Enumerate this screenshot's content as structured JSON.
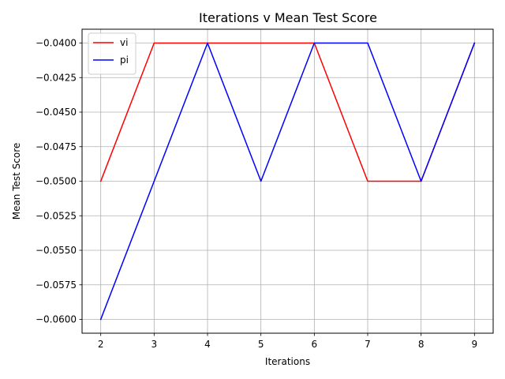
{
  "chart_data": {
    "type": "line",
    "title": "Iterations v Mean Test Score",
    "xlabel": "Iterations",
    "ylabel": "Mean Test Score",
    "x": [
      2,
      3,
      4,
      5,
      6,
      7,
      8,
      9
    ],
    "xticks": [
      "2",
      "3",
      "4",
      "5",
      "6",
      "7",
      "8",
      "9"
    ],
    "yticks": [
      "−0.0400",
      "−0.0425",
      "−0.0450",
      "−0.0475",
      "−0.0500",
      "−0.0525",
      "−0.0550",
      "−0.0575",
      "−0.0600"
    ],
    "ytick_values": [
      -0.04,
      -0.0425,
      -0.045,
      -0.0475,
      -0.05,
      -0.0525,
      -0.055,
      -0.0575,
      -0.06
    ],
    "xlim": [
      1.65,
      9.35
    ],
    "ylim": [
      -0.061,
      -0.039
    ],
    "grid": true,
    "legend_position": "top-left",
    "series": [
      {
        "name": "vi",
        "color": "#ff0000",
        "values": [
          -0.05,
          -0.04,
          -0.04,
          -0.04,
          -0.04,
          -0.05,
          -0.05,
          -0.04
        ]
      },
      {
        "name": "pi",
        "color": "#0000ff",
        "values": [
          -0.06,
          -0.05,
          -0.04,
          -0.05,
          -0.04,
          -0.04,
          -0.05,
          -0.04
        ]
      }
    ]
  }
}
